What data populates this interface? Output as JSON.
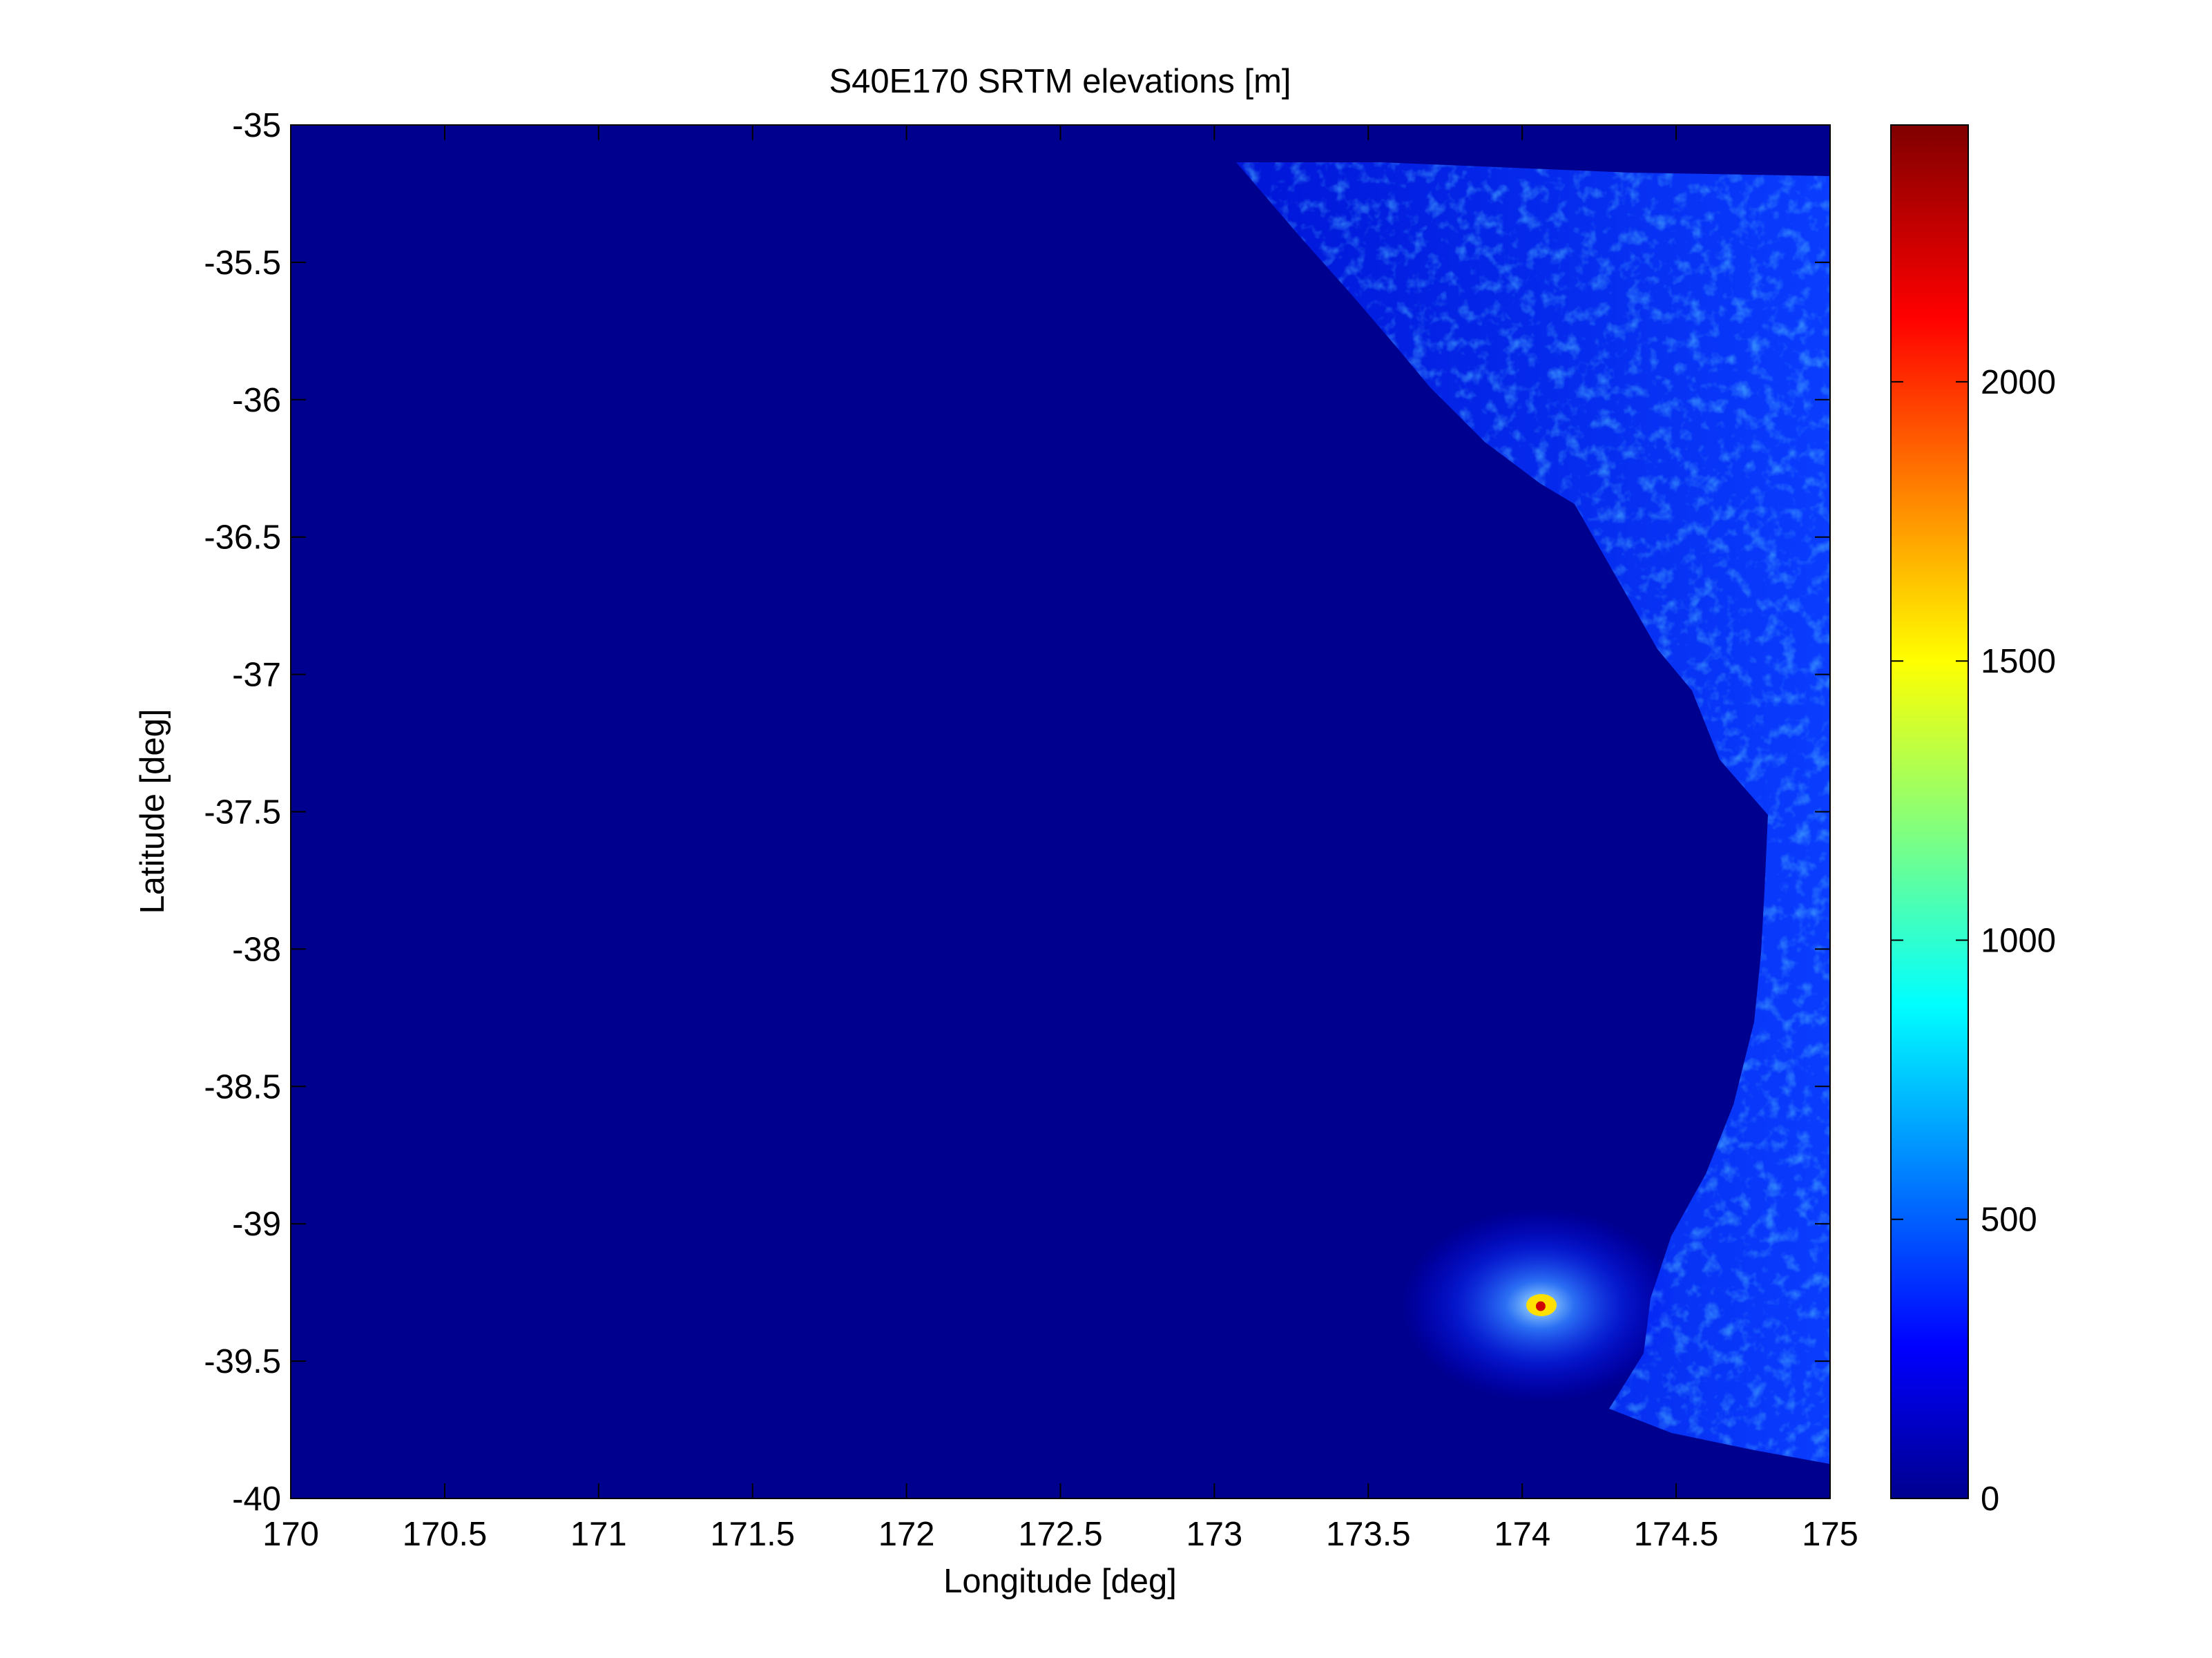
{
  "chart_data": {
    "type": "heatmap",
    "title": "S40E170 SRTM elevations [m]",
    "xlabel": "Longitude [deg]",
    "ylabel": "Latitude [deg]",
    "xlim": [
      170,
      175
    ],
    "ylim": [
      -40,
      -35
    ],
    "xticks": [
      170,
      170.5,
      171,
      171.5,
      172,
      172.5,
      173,
      173.5,
      174,
      174.5,
      175
    ],
    "xtick_labels": [
      "170",
      "170.5",
      "171",
      "171.5",
      "172",
      "172.5",
      "173",
      "173.5",
      "174",
      "174.5",
      "175"
    ],
    "yticks": [
      -35,
      -35.5,
      -36,
      -36.5,
      -37,
      -37.5,
      -38,
      -38.5,
      -39,
      -39.5,
      -40
    ],
    "ytick_labels": [
      "-35",
      "-35.5",
      "-36",
      "-36.5",
      "-37",
      "-37.5",
      "-38",
      "-38.5",
      "-39",
      "-39.5",
      "-40"
    ],
    "colormap": "jet",
    "color_range": [
      0,
      2460
    ],
    "colorbar_ticks": [
      0,
      500,
      1000,
      1500,
      2000
    ],
    "colorbar_tick_labels": [
      "0",
      "500",
      "1000",
      "1500",
      "2000"
    ],
    "sea_color": "#00008f",
    "grid": false,
    "colorbar_location": "right",
    "features": [
      {
        "kind": "peak",
        "lon": 174.06,
        "lat": -39.3,
        "elevation": 2400
      },
      {
        "kind": "coastal-land",
        "lon_range": [
          173.1,
          175
        ],
        "lat_range": [
          -40,
          -35.1
        ],
        "elevation_typical": [
          50,
          400
        ]
      }
    ]
  }
}
